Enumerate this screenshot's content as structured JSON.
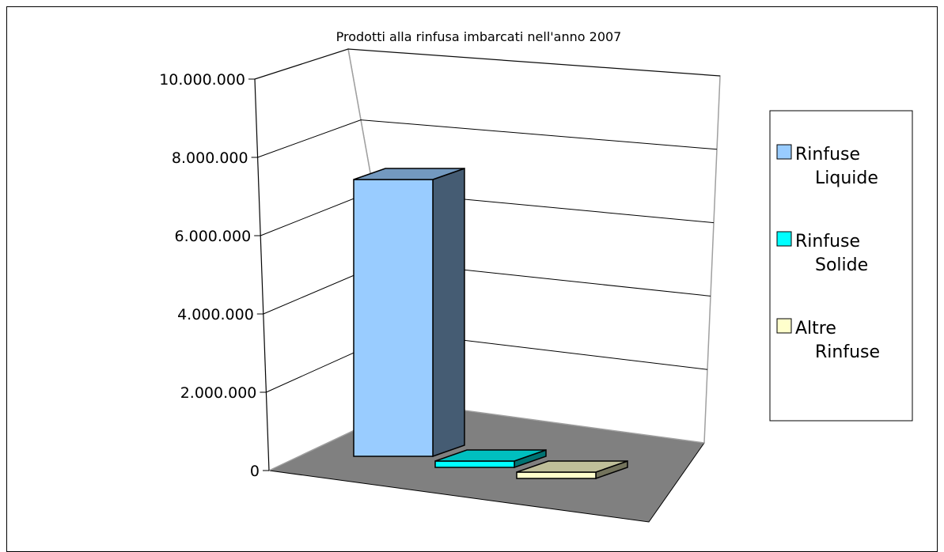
{
  "chart_data": {
    "type": "bar",
    "title": "Prodotti alla rinfusa imbarcati nell'anno 2007",
    "xlabel": "",
    "ylabel": "",
    "ylim": [
      0,
      10000000
    ],
    "yticks": [
      "0",
      "2.000.000",
      "4.000.000",
      "6.000.000",
      "8.000.000",
      "10.000.000"
    ],
    "grid": true,
    "legend_position": "right",
    "series": [
      {
        "name": "Rinfuse Liquide",
        "legend_lines": [
          "Rinfuse",
          "Liquide"
        ],
        "values": [
          7000000
        ],
        "color": "#99ccff"
      },
      {
        "name": "Rinfuse Solide",
        "legend_lines": [
          "Rinfuse",
          "Solide"
        ],
        "values": [
          100000
        ],
        "color": "#00ffff"
      },
      {
        "name": "Altre Rinfuse",
        "legend_lines": [
          "Altre",
          "Rinfuse"
        ],
        "values": [
          100000
        ],
        "color": "#ffffcc"
      }
    ]
  }
}
